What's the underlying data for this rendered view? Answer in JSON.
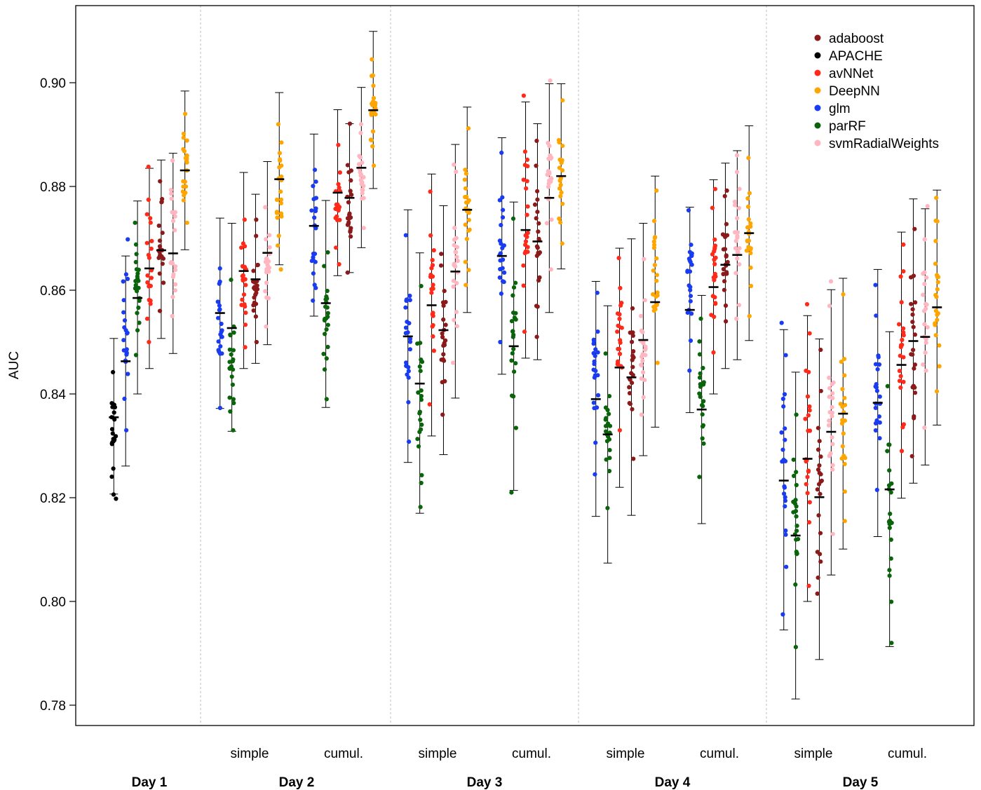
{
  "chart_data": {
    "type": "scatter",
    "ylabel": "AUC",
    "ylim": [
      0.775,
      0.915
    ],
    "yticks": [
      "0.78",
      "0.80",
      "0.82",
      "0.84",
      "0.86",
      "0.88",
      "0.90"
    ],
    "grid": false,
    "legend_position": "top-right",
    "legend": [
      {
        "name": "adaboost",
        "color": "#8b1a1a"
      },
      {
        "name": "APACHE",
        "color": "#000000"
      },
      {
        "name": "avNNet",
        "color": "#ff2a1a"
      },
      {
        "name": "DeepNN",
        "color": "#ffa500"
      },
      {
        "name": "glm",
        "color": "#1a3cf0"
      },
      {
        "name": "parRF",
        "color": "#0a640a"
      },
      {
        "name": "svmRadialWeights",
        "color": "#ffb6c1"
      }
    ],
    "days": [
      {
        "label": "Day 1",
        "subgroups": [
          {
            "label": "",
            "models": [
              {
                "model": "APACHE",
                "mean": 0.8355,
                "lower": 0.8207,
                "upper": 0.8507,
                "min": 0.8198,
                "max": 0.8442
              },
              {
                "model": "glm",
                "mean": 0.8463,
                "lower": 0.8261,
                "upper": 0.8666,
                "min": 0.833,
                "max": 0.8698
              },
              {
                "model": "parRF",
                "mean": 0.8585,
                "lower": 0.84,
                "upper": 0.8772,
                "min": 0.8475,
                "max": 0.873
              },
              {
                "model": "avNNet",
                "mean": 0.8642,
                "lower": 0.8449,
                "upper": 0.8835,
                "min": 0.85,
                "max": 0.8838
              },
              {
                "model": "adaboost",
                "mean": 0.8677,
                "lower": 0.8507,
                "upper": 0.8851,
                "min": 0.856,
                "max": 0.881
              },
              {
                "model": "svmRadialWeights",
                "mean": 0.8671,
                "lower": 0.8478,
                "upper": 0.8864,
                "min": 0.855,
                "max": 0.885
              },
              {
                "model": "DeepNN",
                "mean": 0.8831,
                "lower": 0.8678,
                "upper": 0.8984,
                "min": 0.873,
                "max": 0.894
              }
            ]
          }
        ]
      },
      {
        "label": "Day 2",
        "subgroups": [
          {
            "label": "simple",
            "models": [
              {
                "model": "glm",
                "mean": 0.8556,
                "lower": 0.8372,
                "upper": 0.8739,
                "min": 0.8373,
                "max": 0.8642
              },
              {
                "model": "parRF",
                "mean": 0.8527,
                "lower": 0.8328,
                "upper": 0.8729,
                "min": 0.833,
                "max": 0.862
              },
              {
                "model": "avNNet",
                "mean": 0.8637,
                "lower": 0.8449,
                "upper": 0.8827,
                "min": 0.849,
                "max": 0.8736
              },
              {
                "model": "adaboost",
                "mean": 0.8621,
                "lower": 0.8459,
                "upper": 0.8785,
                "min": 0.85,
                "max": 0.8736
              },
              {
                "model": "svmRadialWeights",
                "mean": 0.8672,
                "lower": 0.8495,
                "upper": 0.8848,
                "min": 0.853,
                "max": 0.876
              },
              {
                "model": "DeepNN",
                "mean": 0.8814,
                "lower": 0.8649,
                "upper": 0.8981,
                "min": 0.864,
                "max": 0.892
              }
            ]
          },
          {
            "label": "cumul.",
            "models": [
              {
                "model": "glm",
                "mean": 0.8724,
                "lower": 0.855,
                "upper": 0.8901,
                "min": 0.858,
                "max": 0.8832
              },
              {
                "model": "parRF",
                "mean": 0.8575,
                "lower": 0.8374,
                "upper": 0.8773,
                "min": 0.839,
                "max": 0.8673
              },
              {
                "model": "avNNet",
                "mean": 0.8788,
                "lower": 0.8628,
                "upper": 0.8948,
                "min": 0.865,
                "max": 0.888
              },
              {
                "model": "adaboost",
                "mean": 0.8778,
                "lower": 0.8634,
                "upper": 0.8921,
                "min": 0.8634,
                "max": 0.8921
              },
              {
                "model": "svmRadialWeights",
                "mean": 0.8836,
                "lower": 0.8682,
                "upper": 0.8991,
                "min": 0.872,
                "max": 0.892
              },
              {
                "model": "DeepNN",
                "mean": 0.8947,
                "lower": 0.8796,
                "upper": 0.9099,
                "min": 0.884,
                "max": 0.9045
              }
            ]
          }
        ]
      },
      {
        "label": "Day 3",
        "subgroups": [
          {
            "label": "simple",
            "models": [
              {
                "model": "glm",
                "mean": 0.8511,
                "lower": 0.8268,
                "upper": 0.8755,
                "min": 0.8308,
                "max": 0.8706
              },
              {
                "model": "parRF",
                "mean": 0.842,
                "lower": 0.817,
                "upper": 0.8672,
                "min": 0.8182,
                "max": 0.8608
              },
              {
                "model": "avNNet",
                "mean": 0.8571,
                "lower": 0.8319,
                "upper": 0.8824,
                "min": 0.838,
                "max": 0.879
              },
              {
                "model": "adaboost",
                "mean": 0.8523,
                "lower": 0.8283,
                "upper": 0.8763,
                "min": 0.836,
                "max": 0.867
              },
              {
                "model": "svmRadialWeights",
                "mean": 0.8636,
                "lower": 0.8392,
                "upper": 0.8881,
                "min": 0.846,
                "max": 0.8842
              },
              {
                "model": "DeepNN",
                "mean": 0.8755,
                "lower": 0.8557,
                "upper": 0.8953,
                "min": 0.861,
                "max": 0.8912
              }
            ]
          },
          {
            "label": "cumul.",
            "models": [
              {
                "model": "glm",
                "mean": 0.8666,
                "lower": 0.8438,
                "upper": 0.8894,
                "min": 0.85,
                "max": 0.8865
              },
              {
                "model": "parRF",
                "mean": 0.8492,
                "lower": 0.8214,
                "upper": 0.877,
                "min": 0.821,
                "max": 0.8738
              },
              {
                "model": "avNNet",
                "mean": 0.8716,
                "lower": 0.8469,
                "upper": 0.8963,
                "min": 0.852,
                "max": 0.8975
              },
              {
                "model": "adaboost",
                "mean": 0.8694,
                "lower": 0.8466,
                "upper": 0.8921,
                "min": 0.851,
                "max": 0.8888
              },
              {
                "model": "svmRadialWeights",
                "mean": 0.8778,
                "lower": 0.8557,
                "upper": 0.8998,
                "min": 0.864,
                "max": 0.9004
              },
              {
                "model": "DeepNN",
                "mean": 0.882,
                "lower": 0.8641,
                "upper": 0.8998,
                "min": 0.869,
                "max": 0.8966
              }
            ]
          }
        ]
      },
      {
        "label": "Day 4",
        "subgroups": [
          {
            "label": "simple",
            "models": [
              {
                "model": "glm",
                "mean": 0.839,
                "lower": 0.8164,
                "upper": 0.8617,
                "min": 0.8245,
                "max": 0.8595
              },
              {
                "model": "parRF",
                "mean": 0.8322,
                "lower": 0.8074,
                "upper": 0.857,
                "min": 0.818,
                "max": 0.8478
              },
              {
                "model": "avNNet",
                "mean": 0.8451,
                "lower": 0.822,
                "upper": 0.8681,
                "min": 0.833,
                "max": 0.8662
              },
              {
                "model": "adaboost",
                "mean": 0.8432,
                "lower": 0.8166,
                "upper": 0.8699,
                "min": 0.8275,
                "max": 0.8565
              },
              {
                "model": "svmRadialWeights",
                "mean": 0.8504,
                "lower": 0.8281,
                "upper": 0.8729,
                "min": 0.836,
                "max": 0.866
              },
              {
                "model": "DeepNN",
                "mean": 0.8577,
                "lower": 0.8336,
                "upper": 0.882,
                "min": 0.846,
                "max": 0.8792
              }
            ]
          },
          {
            "label": "cumul.",
            "models": [
              {
                "model": "glm",
                "mean": 0.8562,
                "lower": 0.8364,
                "upper": 0.876,
                "min": 0.8445,
                "max": 0.8754
              },
              {
                "model": "parRF",
                "mean": 0.837,
                "lower": 0.815,
                "upper": 0.859,
                "min": 0.824,
                "max": 0.8545
              },
              {
                "model": "avNNet",
                "mean": 0.8606,
                "lower": 0.84,
                "upper": 0.8813,
                "min": 0.848,
                "max": 0.8795
              },
              {
                "model": "adaboost",
                "mean": 0.8649,
                "lower": 0.8449,
                "upper": 0.8845,
                "min": 0.854,
                "max": 0.8792
              },
              {
                "model": "svmRadialWeights",
                "mean": 0.8668,
                "lower": 0.8466,
                "upper": 0.8869,
                "min": 0.8545,
                "max": 0.886
              },
              {
                "model": "DeepNN",
                "mean": 0.871,
                "lower": 0.8503,
                "upper": 0.8917,
                "min": 0.855,
                "max": 0.8855
              }
            ]
          }
        ]
      },
      {
        "label": "Day 5",
        "subgroups": [
          {
            "label": "simple",
            "models": [
              {
                "model": "glm",
                "mean": 0.8233,
                "lower": 0.7945,
                "upper": 0.8524,
                "min": 0.7975,
                "max": 0.8537
              },
              {
                "model": "parRF",
                "mean": 0.8127,
                "lower": 0.7812,
                "upper": 0.8442,
                "min": 0.7912,
                "max": 0.836
              },
              {
                "model": "avNNet",
                "mean": 0.8275,
                "lower": 0.8,
                "upper": 0.8551,
                "min": 0.803,
                "max": 0.8573
              },
              {
                "model": "adaboost",
                "mean": 0.8201,
                "lower": 0.7888,
                "upper": 0.8506,
                "min": 0.8015,
                "max": 0.8485
              },
              {
                "model": "svmRadialWeights",
                "mean": 0.8327,
                "lower": 0.8051,
                "upper": 0.8601,
                "min": 0.813,
                "max": 0.8617
              },
              {
                "model": "DeepNN",
                "mean": 0.8362,
                "lower": 0.8101,
                "upper": 0.8623,
                "min": 0.8155,
                "max": 0.8592
              }
            ]
          },
          {
            "label": "cumul.",
            "models": [
              {
                "model": "glm",
                "mean": 0.8383,
                "lower": 0.8125,
                "upper": 0.864,
                "min": 0.8215,
                "max": 0.861
              },
              {
                "model": "parRF",
                "mean": 0.8216,
                "lower": 0.7913,
                "upper": 0.852,
                "min": 0.792,
                "max": 0.8415
              },
              {
                "model": "avNNet",
                "mean": 0.8456,
                "lower": 0.8199,
                "upper": 0.8712,
                "min": 0.829,
                "max": 0.8688
              },
              {
                "model": "adaboost",
                "mean": 0.8502,
                "lower": 0.8228,
                "upper": 0.8776,
                "min": 0.828,
                "max": 0.8718
              },
              {
                "model": "svmRadialWeights",
                "mean": 0.851,
                "lower": 0.8263,
                "upper": 0.8757,
                "min": 0.8335,
                "max": 0.8762
              },
              {
                "model": "DeepNN",
                "mean": 0.8567,
                "lower": 0.834,
                "upper": 0.8793,
                "min": 0.8405,
                "max": 0.8778
              }
            ]
          }
        ]
      }
    ]
  }
}
